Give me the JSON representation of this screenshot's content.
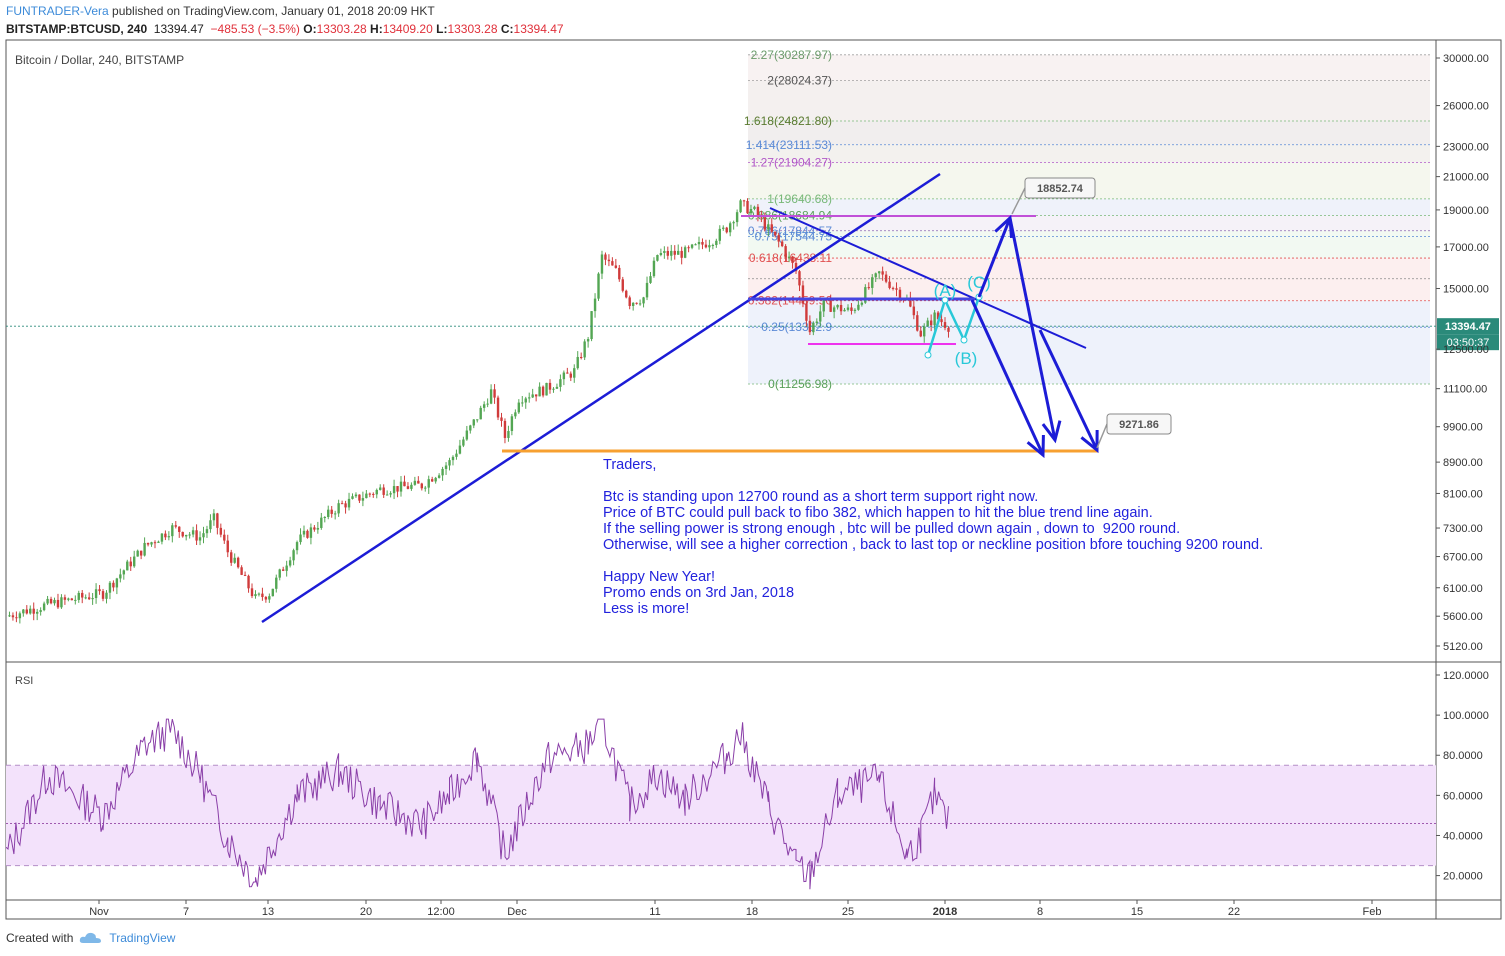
{
  "header": {
    "author": "FUNTRADER-Vera",
    "published": " published on TradingView.com, January 01, 2018 20:09 HKT",
    "symbol": "BITSTAMP:BTCUSD, 240",
    "last": "13394.47",
    "change": "−485.53 (−3.5%)",
    "o_label": "O:",
    "o_value": "13303.28",
    "h_label": "H:",
    "h_value": "13409.20",
    "l_label": "L:",
    "l_value": "13303.28",
    "c_label": "C:",
    "c_value": "13394.47"
  },
  "main_pane": {
    "title": "Bitcoin / Dollar, 240, BITSTAMP",
    "price_label": "13394.47",
    "countdown": "03:50:37",
    "target_up": "18852.74",
    "target_down": "9271.86",
    "wave_labels": [
      "(A)",
      "(B)",
      "(C)"
    ]
  },
  "rsi_pane": {
    "title": "RSI"
  },
  "note": {
    "text": "Traders,\n\nBtc is standing upon 12700 round as a short term support right now.\nPrice of BTC could pull back to fibo 382, which happen to hit the blue trend line again.\nIf the selling power is strong enough , btc will be pulled down again , down to  9200 round.\nOtherwise, will see a higher correction , back to last top or neckline position bfore touching 9200 round.\n\nHappy New Year!\nPromo ends on 3rd Jan, 2018\nLess is more!"
  },
  "footer": {
    "created_with": "Created with",
    "brand": "TradingView"
  },
  "colors": {
    "bull": "#53a653",
    "bear": "#d03b3b",
    "trend": "#1c1cd6",
    "support": "#f7a030",
    "wave": "#28c8d8",
    "rsi": "#8a3fa8",
    "rsi_band": "#f3e2fb"
  },
  "chart_data": [
    {
      "type": "candlestick",
      "title": "Bitcoin / Dollar, 240, BITSTAMP",
      "y_scale": "log",
      "y_ticks": [
        "30000.00",
        "26000.00",
        "23000.00",
        "21000.00",
        "19000.00",
        "17000.00",
        "15000.00",
        "13394.47",
        "12500.00",
        "11100.00",
        "9900.00",
        "8900.00",
        "8100.00",
        "7300.00",
        "6700.00",
        "6100.00",
        "5600.00",
        "5120.00"
      ],
      "x_ticks": [
        "Nov",
        "7",
        "13",
        "20",
        "12:00",
        "Dec",
        "11",
        "18",
        "25",
        "2018",
        "8",
        "15",
        "22",
        "Feb"
      ],
      "price_path": [
        [
          "2017-10-25",
          5600
        ],
        [
          "2017-10-28",
          5800
        ],
        [
          "2017-11-01",
          6000
        ],
        [
          "2017-11-04",
          6900
        ],
        [
          "2017-11-06",
          7300
        ],
        [
          "2017-11-08",
          7100
        ],
        [
          "2017-11-09",
          7500
        ],
        [
          "2017-11-10",
          6800
        ],
        [
          "2017-11-12",
          5900
        ],
        [
          "2017-11-13",
          6000
        ],
        [
          "2017-11-15",
          7000
        ],
        [
          "2017-11-18",
          7800
        ],
        [
          "2017-11-21",
          8200
        ],
        [
          "2017-11-24",
          8300
        ],
        [
          "2017-11-26",
          8900
        ],
        [
          "2017-11-28",
          10200
        ],
        [
          "2017-11-29",
          11000
        ],
        [
          "2017-11-30",
          9600
        ],
        [
          "2017-12-01",
          10800
        ],
        [
          "2017-12-03",
          11100
        ],
        [
          "2017-12-05",
          11700
        ],
        [
          "2017-12-06",
          13000
        ],
        [
          "2017-12-07",
          16500
        ],
        [
          "2017-12-08",
          15800
        ],
        [
          "2017-12-09",
          14400
        ],
        [
          "2017-12-10",
          14600
        ],
        [
          "2017-12-11",
          16600
        ],
        [
          "2017-12-13",
          16700
        ],
        [
          "2017-12-15",
          17400
        ],
        [
          "2017-12-16",
          18000
        ],
        [
          "2017-12-17",
          19300
        ],
        [
          "2017-12-18",
          18900
        ],
        [
          "2017-12-20",
          17000
        ],
        [
          "2017-12-21",
          15800
        ],
        [
          "2017-12-22",
          13200
        ],
        [
          "2017-12-23",
          14300
        ],
        [
          "2017-12-25",
          14000
        ],
        [
          "2017-12-27",
          15700
        ],
        [
          "2017-12-29",
          14500
        ],
        [
          "2017-12-30",
          13100
        ],
        [
          "2017-12-31",
          13800
        ],
        [
          "2018-01-01",
          13394
        ]
      ],
      "fibonacci": [
        {
          "level": "0",
          "price": 11256.98
        },
        {
          "level": "0.25",
          "price": 13352.93
        },
        {
          "level": "0.382",
          "price": 14459.56
        },
        {
          "level": "0.5",
          "price": 15448.83
        },
        {
          "level": "0.618",
          "price": 16438.11
        },
        {
          "level": "0.75",
          "price": 17544.75
        },
        {
          "level": "0.786",
          "price": 17844.57
        },
        {
          "level": "0.886",
          "price": 18684.94
        },
        {
          "level": "1",
          "price": 19640.68
        },
        {
          "level": "1.27",
          "price": 21904.27
        },
        {
          "level": "1.414",
          "price": 23111.53
        },
        {
          "level": "1.618",
          "price": 24821.8
        },
        {
          "level": "2",
          "price": 28024.37
        },
        {
          "level": "2.27",
          "price": 30287.97
        }
      ],
      "fib_labels": [
        "0(11256.98)",
        "0.25(13352.9",
        "0.382(14459.56",
        "0.618(16438.11",
        "0.75(17544.75",
        "0.786(17844.57",
        "0.886(18684.94",
        "1(19640.68)",
        "1.27(21904.27)",
        "1.414(23111.53)",
        "1.618(24821.80)",
        "2(28024.37)",
        "2.27(30287.97)"
      ],
      "support_level": 9271.86,
      "upside_target": 18852.74,
      "downside_target": 9271.86
    },
    {
      "type": "line",
      "title": "RSI",
      "y_ticks": [
        "120.0000",
        "100.0000",
        "80.0000",
        "60.0000",
        "40.0000",
        "20.0000"
      ],
      "band": [
        25,
        75
      ],
      "midline": 46,
      "x": [
        "2017-10-25",
        "2017-10-28",
        "2017-11-01",
        "2017-11-04",
        "2017-11-06",
        "2017-11-08",
        "2017-11-10",
        "2017-11-12",
        "2017-11-15",
        "2017-11-18",
        "2017-11-21",
        "2017-11-24",
        "2017-11-26",
        "2017-11-28",
        "2017-11-30",
        "2017-12-03",
        "2017-12-06",
        "2017-12-07",
        "2017-12-09",
        "2017-12-11",
        "2017-12-13",
        "2017-12-16",
        "2017-12-17",
        "2017-12-19",
        "2017-12-21",
        "2017-12-22",
        "2017-12-24",
        "2017-12-27",
        "2017-12-29",
        "2017-12-30",
        "2017-12-31",
        "2018-01-01"
      ],
      "values": [
        30,
        70,
        50,
        85,
        93,
        70,
        38,
        18,
        60,
        72,
        55,
        45,
        60,
        80,
        30,
        78,
        85,
        97,
        55,
        70,
        58,
        80,
        90,
        55,
        25,
        20,
        60,
        68,
        30,
        40,
        60,
        46
      ]
    }
  ]
}
